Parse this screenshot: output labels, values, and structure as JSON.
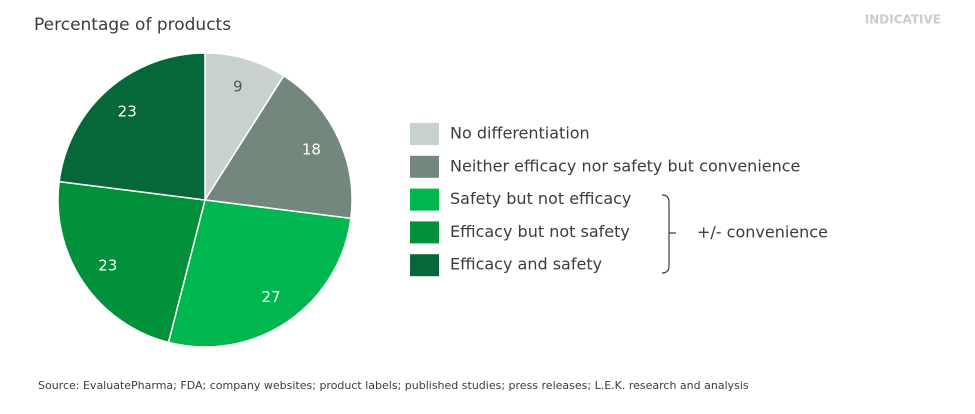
{
  "chart_data": {
    "type": "pie",
    "title": "Percentage of products",
    "badge": "INDICATIVE",
    "categories": [
      "No differentiation",
      "Neither efficacy nor safety but convenience",
      "Safety but not efficacy",
      "Efficacy but not safety",
      "Efficacy and safety"
    ],
    "values": [
      9,
      18,
      27,
      23,
      23
    ],
    "colors": [
      "#c9d1d0",
      "#74877d",
      "#00b74f",
      "#00913a",
      "#066838"
    ],
    "group_label": "+/- convenience",
    "source": "Source: EvaluatePharma; FDA; company websites; product labels; published studies; press releases; L.E.K. research and analysis"
  }
}
